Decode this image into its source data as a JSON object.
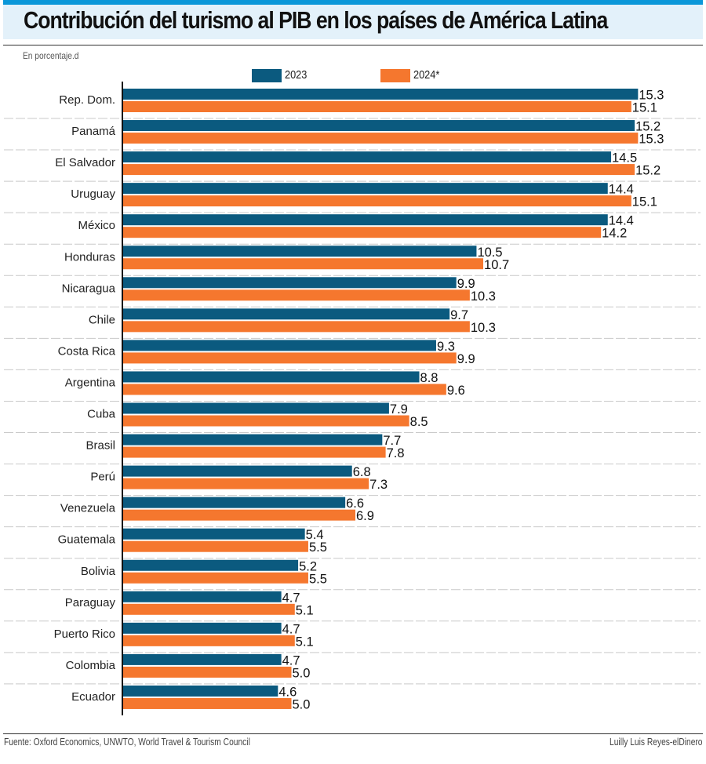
{
  "header": {
    "title": "Contribución del turismo al PIB en los países de América Latina",
    "subtitle": "En porcentaje.d"
  },
  "footer": {
    "source": "Fuente: Oxford Economics, UNWTO, World Travel & Tourism Council",
    "credit": "Luilly Luis Reyes-elDinero"
  },
  "colors": {
    "series_2023": "#0b5a7f",
    "series_2024": "#f5772e",
    "title_band": "#e3f1fa",
    "top_stripe": "#0a97d9"
  },
  "chart_data": {
    "type": "bar",
    "orientation": "horizontal",
    "title": "Contribución del turismo al PIB en los países de América Latina",
    "subtitle": "En porcentaje.d",
    "xlabel": "",
    "ylabel": "",
    "xlim": [
      0,
      15.3
    ],
    "grid": false,
    "legend_position": "top-center",
    "categories": [
      "Rep. Dom.",
      "Panamá",
      "El Salvador",
      "Uruguay",
      "México",
      "Honduras",
      "Nicaragua",
      "Chile",
      "Costa Rica",
      "Argentina",
      "Cuba",
      "Brasil",
      "Perú",
      "Venezuela",
      "Guatemala",
      "Bolivia",
      "Paraguay",
      "Puerto Rico",
      "Colombia",
      "Ecuador"
    ],
    "series": [
      {
        "name": "2023",
        "values": [
          15.3,
          15.2,
          14.5,
          14.4,
          14.4,
          10.5,
          9.9,
          9.7,
          9.3,
          8.8,
          7.9,
          7.7,
          6.8,
          6.6,
          5.4,
          5.2,
          4.7,
          4.7,
          4.7,
          4.6
        ]
      },
      {
        "name": "2024*",
        "values": [
          15.1,
          15.3,
          15.2,
          15.1,
          14.2,
          10.7,
          10.3,
          10.3,
          9.9,
          9.6,
          8.5,
          7.8,
          7.3,
          6.9,
          5.5,
          5.5,
          5.1,
          5.1,
          5.0,
          5.0
        ]
      }
    ]
  }
}
